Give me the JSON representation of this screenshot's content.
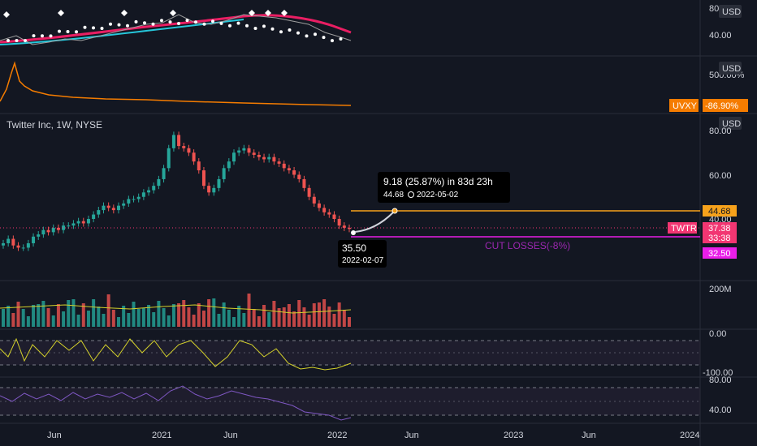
{
  "chart_data": {
    "type": "candlestick",
    "title": "Twitter Inc, 1W, NYSE",
    "currency": "USD",
    "x_axis_labels": [
      "Jun",
      "2021",
      "Jun",
      "2022",
      "Jun",
      "2023",
      "Jun",
      "2024"
    ],
    "price_axis": [
      "80.00",
      "60.00",
      "40.00"
    ],
    "levels": {
      "take_profit": {
        "price": 44.68,
        "label": "44.68"
      },
      "current": {
        "price": 37.38,
        "label": "37.38",
        "symbol": "TWTR",
        "countdown": "33:38"
      },
      "stop": {
        "price": 32.5,
        "label": "32.50",
        "text": "CUT LOSSES(-8%)"
      }
    },
    "measure": {
      "headline": "9.18 (25.87%) in 83d 23h",
      "target": "44.68",
      "target_date": "2022-05-02"
    },
    "entry": {
      "price": "35.50",
      "date": "2022-02-07"
    },
    "weekly_close": [
      29,
      31,
      28,
      27,
      27,
      29,
      32,
      33,
      35,
      34,
      36,
      35,
      37,
      37,
      38,
      39,
      38,
      40,
      42,
      44,
      46,
      45,
      44,
      46,
      47,
      49,
      49,
      50,
      52,
      53,
      55,
      58,
      63,
      72,
      78,
      73,
      72,
      70,
      66,
      62,
      55,
      52,
      54,
      58,
      63,
      66,
      70,
      71,
      72,
      70,
      69,
      68,
      67,
      68,
      66,
      65,
      63,
      62,
      60,
      58,
      54,
      50,
      47,
      45,
      43,
      42,
      40,
      37,
      36,
      35.5
    ],
    "panes": [
      {
        "name": "overlay",
        "axis": [
          "80",
          "40.00"
        ],
        "currency": "USD"
      },
      {
        "name": "UVXY",
        "axis": [
          "500.00%"
        ],
        "currency": "USD",
        "badge": "UVXY",
        "value": "-86.90%"
      },
      {
        "name": "volume",
        "axis": [
          "200M"
        ]
      },
      {
        "name": "oscillator",
        "axis": [
          "0.00",
          "-100.00"
        ]
      },
      {
        "name": "rsi",
        "axis": [
          "80.00",
          "40.00"
        ]
      }
    ]
  },
  "colors": {
    "background": "#131722",
    "up": "#26a69a",
    "down": "#ef5350",
    "take_profit_line": "#f7a21b",
    "stop_line": "#e91ee8",
    "current_badge": "#f23672",
    "uvxy": "#f57c00",
    "rsi": "#7e57c2",
    "osc": "#d4d12b"
  }
}
